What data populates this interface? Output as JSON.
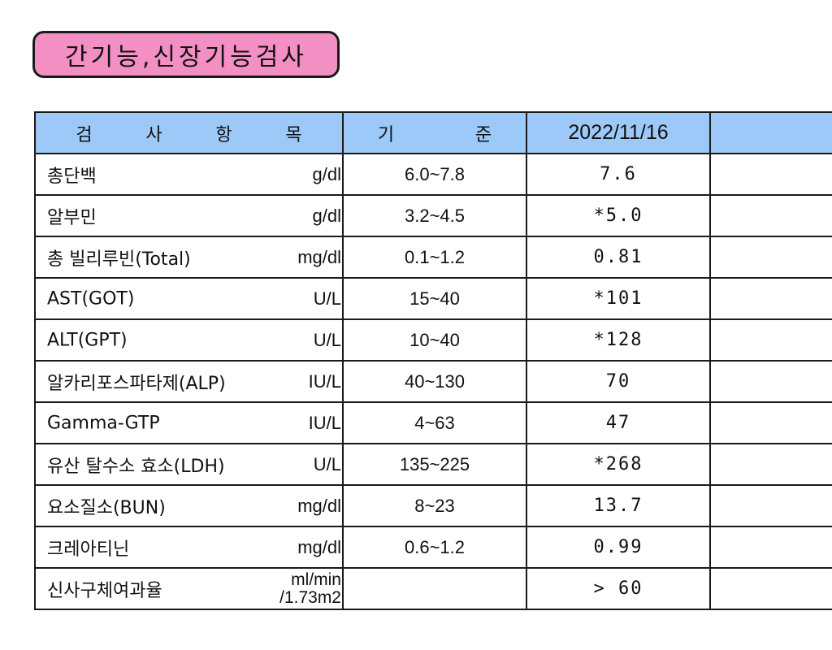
{
  "title": "간기능,신장기능검사",
  "table": {
    "headers": {
      "item": [
        "검",
        "사",
        "항",
        "목"
      ],
      "reference": [
        "기",
        "준"
      ],
      "date": "2022/11/16",
      "extra": ""
    },
    "rows": [
      {
        "name": "총단백",
        "unit": "g/dl",
        "unit2": "",
        "reference": "6.0~7.8",
        "value": "7.6"
      },
      {
        "name": "알부민",
        "unit": "g/dl",
        "unit2": "",
        "reference": "3.2~4.5",
        "value": "*5.0"
      },
      {
        "name": "총 빌리루빈(Total)",
        "unit": "mg/dl",
        "unit2": "",
        "reference": "0.1~1.2",
        "value": "0.81"
      },
      {
        "name": "AST(GOT)",
        "unit": "U/L",
        "unit2": "",
        "reference": "15~40",
        "value": "*101"
      },
      {
        "name": "ALT(GPT)",
        "unit": "U/L",
        "unit2": "",
        "reference": "10~40",
        "value": "*128"
      },
      {
        "name": "알카리포스파타제(ALP)",
        "unit": "IU/L",
        "unit2": "",
        "reference": "40~130",
        "value": "70"
      },
      {
        "name": "Gamma-GTP",
        "unit": "IU/L",
        "unit2": "",
        "reference": "4~63",
        "value": "47"
      },
      {
        "name": "유산 탈수소 효소(LDH)",
        "unit": "U/L",
        "unit2": "",
        "reference": "135~225",
        "value": "*268"
      },
      {
        "name": "요소질소(BUN)",
        "unit": "mg/dl",
        "unit2": "",
        "reference": "8~23",
        "value": "13.7"
      },
      {
        "name": "크레아티닌",
        "unit": "mg/dl",
        "unit2": "",
        "reference": "0.6~1.2",
        "value": "0.99"
      },
      {
        "name": "신사구체여과율",
        "unit": "ml/min",
        "unit2": "/1.73m2",
        "reference": "",
        "value": "> 60"
      }
    ]
  },
  "colors": {
    "title_bg": "#f48fc4",
    "header_bg": "#9cc9f7",
    "border": "#1a1a1a"
  }
}
